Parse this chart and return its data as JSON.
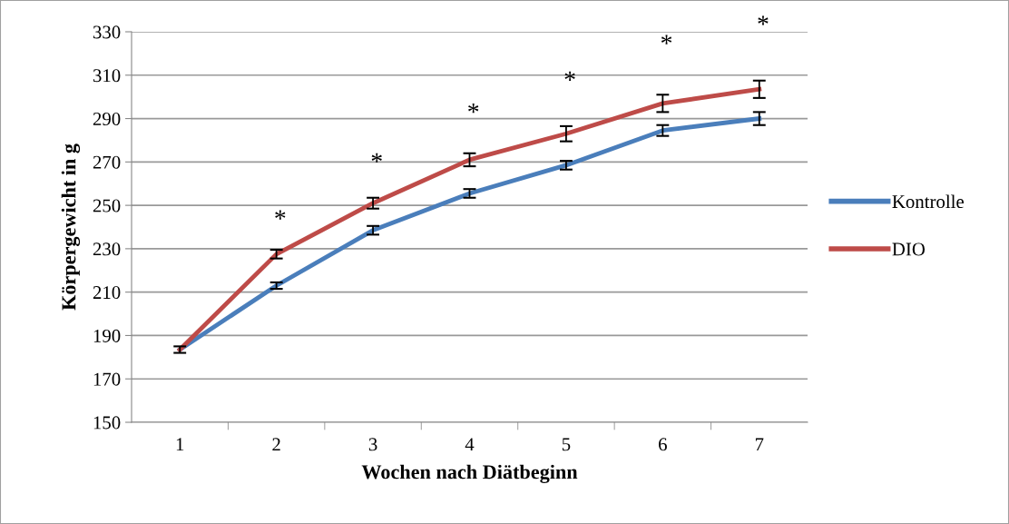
{
  "chart_data": {
    "type": "line",
    "xlabel": "Wochen nach Diätbeginn",
    "ylabel": "Körpergewicht in g",
    "categories": [
      "1",
      "2",
      "3",
      "4",
      "5",
      "6",
      "7"
    ],
    "series": [
      {
        "name": "Kontrolle",
        "color": "#4a7ebb",
        "values": [
          183.5,
          213,
          238.5,
          255.5,
          268.5,
          284.5,
          290
        ],
        "errors": [
          null,
          1.5,
          2,
          2,
          2,
          2.5,
          3
        ]
      },
      {
        "name": "DIO",
        "color": "#be4b48",
        "values": [
          183.5,
          227.5,
          251,
          271,
          283,
          297,
          303.5
        ],
        "errors": [
          1.5,
          2,
          2.5,
          3,
          3.5,
          4,
          4
        ]
      }
    ],
    "annotations": [
      "*",
      "*",
      "*",
      "*",
      "*",
      "*"
    ],
    "ylim": [
      150,
      330
    ],
    "yticks": [
      150,
      170,
      190,
      210,
      230,
      250,
      270,
      290,
      310,
      330
    ],
    "grid": "y",
    "legend": "right",
    "marker": "none",
    "line_style": "solid"
  }
}
